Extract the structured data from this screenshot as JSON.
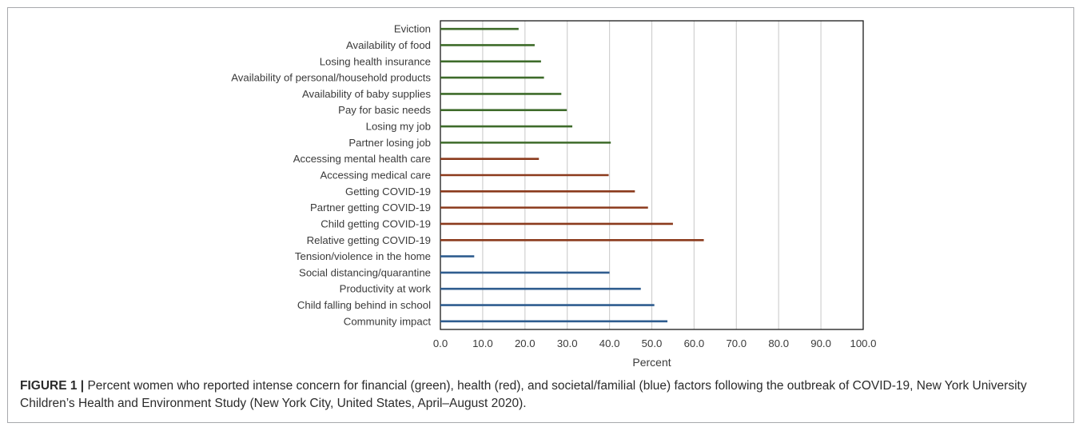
{
  "chart_data": {
    "type": "bar",
    "orientation": "horizontal",
    "categories": [
      "Eviction",
      "Availability of food",
      "Losing health insurance",
      "Availability of personal/household products",
      "Availability of baby supplies",
      "Pay for basic needs",
      "Losing my job",
      "Partner losing job",
      "Accessing mental health care",
      "Accessing medical care",
      "Getting COVID-19",
      "Partner getting COVID-19",
      "Child getting COVID-19",
      "Relative getting COVID-19",
      "Tension/violence in the home",
      "Social distancing/quarantine",
      "Productivity at work",
      "Child falling behind in school",
      "Community impact"
    ],
    "values": [
      18.5,
      22.3,
      23.8,
      24.5,
      28.6,
      29.9,
      31.2,
      40.3,
      23.3,
      39.8,
      46.0,
      49.1,
      55.0,
      62.3,
      8.0,
      40.0,
      47.4,
      50.6,
      53.7
    ],
    "groups": [
      "financial",
      "financial",
      "financial",
      "financial",
      "financial",
      "financial",
      "financial",
      "financial",
      "health",
      "health",
      "health",
      "health",
      "health",
      "health",
      "societal",
      "societal",
      "societal",
      "societal",
      "societal"
    ],
    "group_colors": {
      "financial": "#3e6b2a",
      "health": "#8b3a1c",
      "societal": "#2f5d8f"
    },
    "xlabel": "Percent",
    "xlim": [
      0,
      100
    ],
    "xticks": [
      "0.0",
      "10.0",
      "20.0",
      "30.0",
      "40.0",
      "50.0",
      "60.0",
      "70.0",
      "80.0",
      "90.0",
      "100.0"
    ],
    "grid": true
  },
  "caption": {
    "figure_label": "FIGURE 1",
    "separator": "|",
    "text": "Percent women who reported intense concern for financial (green), health (red), and societal/familial (blue) factors following the outbreak of COVID-19, New York University Children’s Health and Environment Study (New York City, United States, April–August 2020)."
  }
}
